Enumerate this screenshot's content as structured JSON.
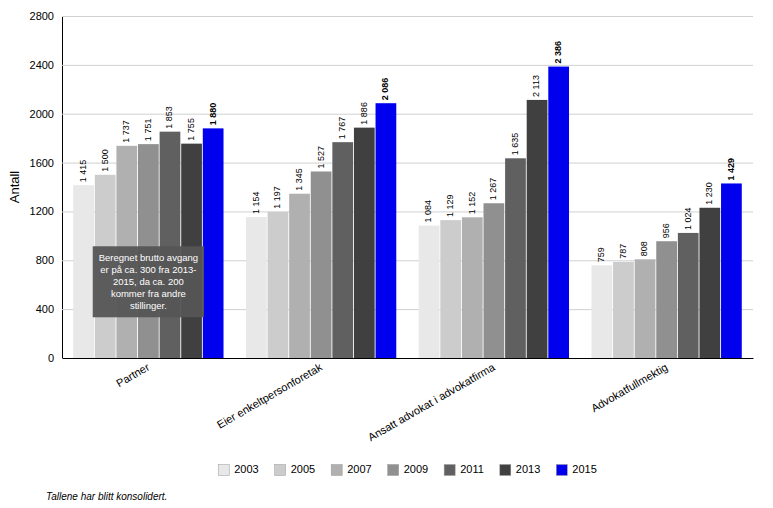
{
  "chart_data": {
    "type": "bar",
    "categories": [
      "Partner",
      "Eier enkeltpersonforetak",
      "Ansatt advokat i advokatfirma",
      "Advokatfullmektig"
    ],
    "series": [
      {
        "name": "2003",
        "color": "#e8e8e8",
        "values": [
          1415,
          1154,
          1084,
          759
        ],
        "value_labels": [
          "1 415",
          "1 154",
          "1 084",
          "759"
        ]
      },
      {
        "name": "2005",
        "color": "#cccccc",
        "values": [
          1500,
          1197,
          1129,
          787
        ],
        "value_labels": [
          "1 500",
          "1 197",
          "1 129",
          "787"
        ]
      },
      {
        "name": "2007",
        "color": "#b0b0b0",
        "values": [
          1737,
          1345,
          1152,
          808
        ],
        "value_labels": [
          "1 737",
          "1 345",
          "1 152",
          "808"
        ]
      },
      {
        "name": "2009",
        "color": "#909090",
        "values": [
          1751,
          1527,
          1267,
          956
        ],
        "value_labels": [
          "1 751",
          "1 527",
          "1 267",
          "956"
        ]
      },
      {
        "name": "2011",
        "color": "#606060",
        "values": [
          1853,
          1767,
          1635,
          1024
        ],
        "value_labels": [
          "1 853",
          "1 767",
          "1 635",
          "1 024"
        ]
      },
      {
        "name": "2013",
        "color": "#404040",
        "values": [
          1755,
          1886,
          2113,
          1230
        ],
        "value_labels": [
          "1 755",
          "1 886",
          "2 113",
          "1 230"
        ]
      },
      {
        "name": "2015",
        "color": "#0000ee",
        "values": [
          1880,
          2086,
          2386,
          1429
        ],
        "value_labels": [
          "1 880",
          "2 086",
          "2 386",
          "1 429"
        ]
      }
    ],
    "ylabel": "Antall",
    "ylim": [
      0,
      2800
    ],
    "yticks": [
      0,
      400,
      800,
      1200,
      1600,
      2000,
      2400,
      2800
    ],
    "grid": true,
    "data_labels": true,
    "legend": "bottom",
    "annotations": [
      "Beregnet brutto avgang\ner på ca. 300 fra 2013-\n2015, da ca. 200\nkommer fra andre\nstillinger."
    ],
    "footnote": "Tallene har blitt konsolidert."
  }
}
